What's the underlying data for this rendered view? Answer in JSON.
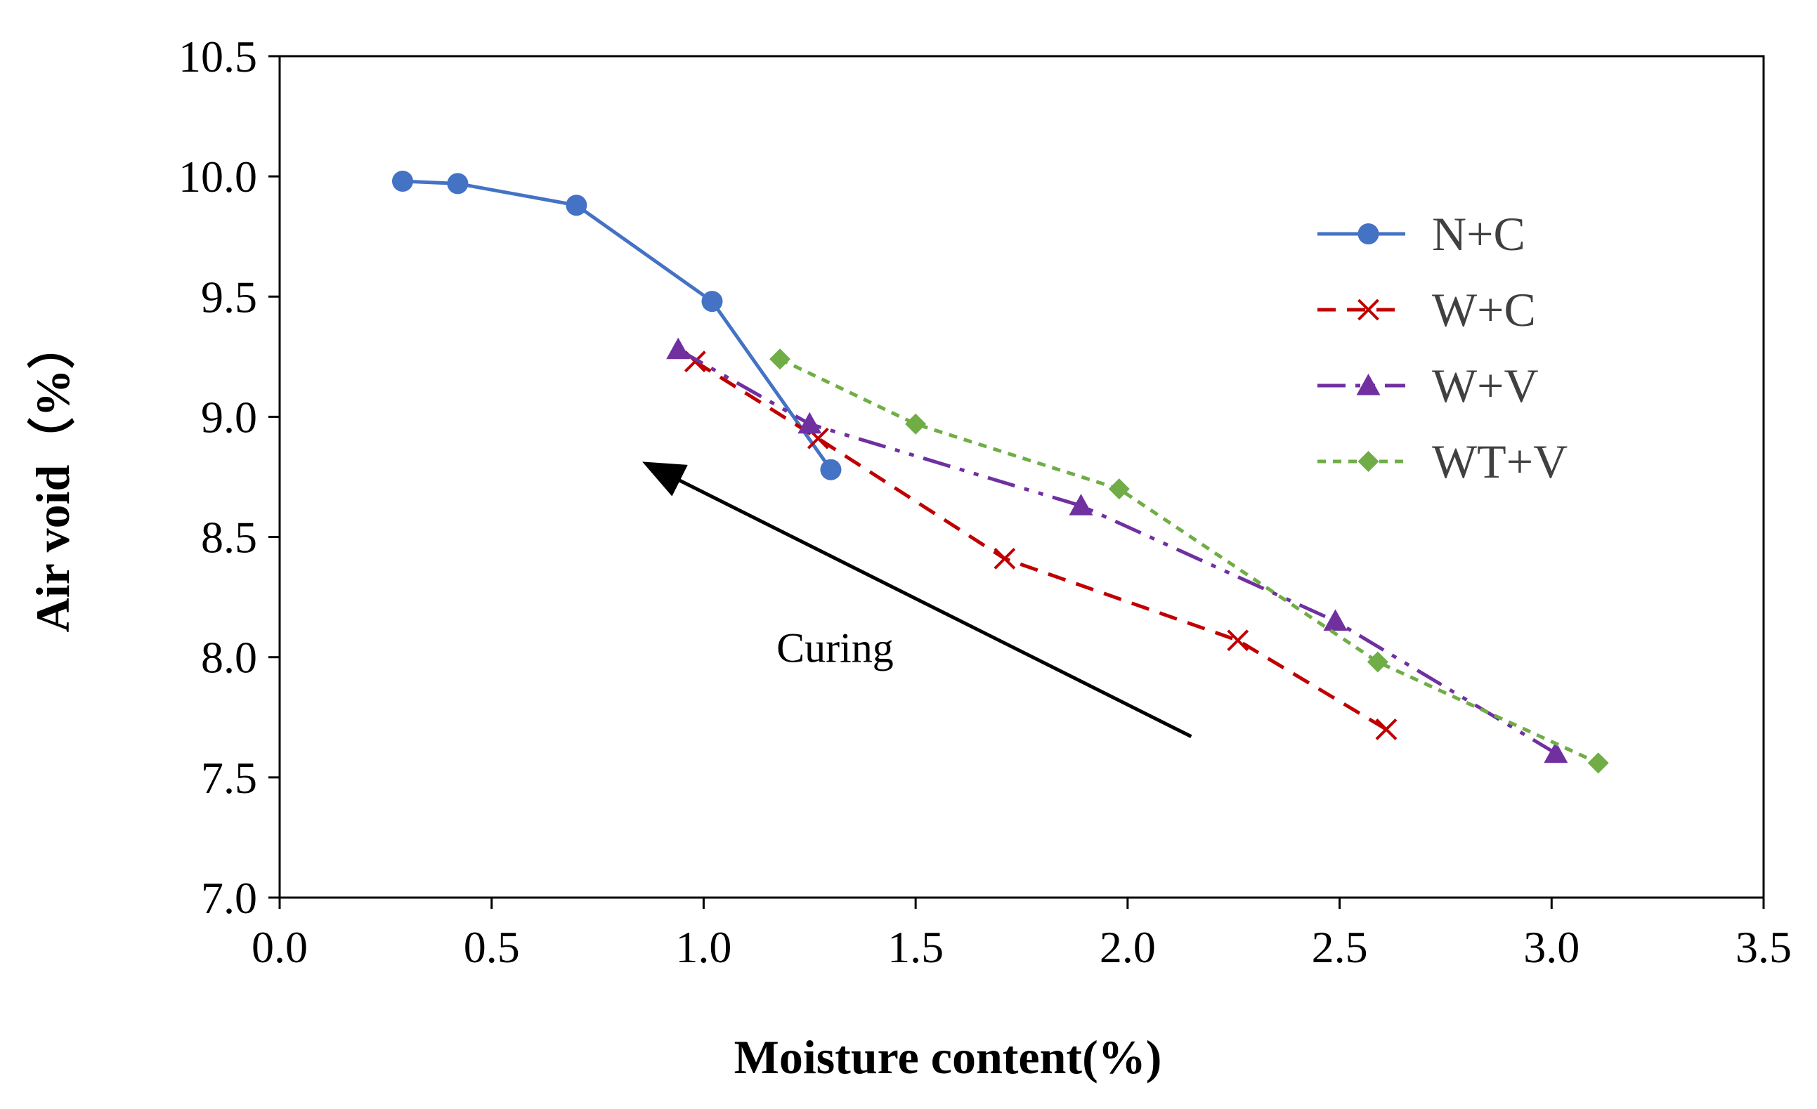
{
  "chart_data": {
    "type": "line",
    "title": "",
    "xlabel": "Moisture content(%)",
    "ylabel": "Air void（%）",
    "xlim": [
      0.0,
      3.5
    ],
    "ylim": [
      7.0,
      10.5
    ],
    "xticks": [
      "0.0",
      "0.5",
      "1.0",
      "1.5",
      "2.0",
      "2.5",
      "3.0",
      "3.5"
    ],
    "yticks": [
      "7.0",
      "7.5",
      "8.0",
      "8.5",
      "9.0",
      "9.5",
      "10.0",
      "10.5"
    ],
    "grid": false,
    "legend_position": "top-right",
    "annotation": {
      "text": "Curing",
      "arrow_from": [
        2.15,
        7.67
      ],
      "arrow_to": [
        0.87,
        8.8
      ]
    },
    "series": [
      {
        "name": "N+C",
        "color": "#4472C4",
        "dash": "solid",
        "marker": "circle",
        "x": [
          0.29,
          0.42,
          0.7,
          1.02,
          1.3
        ],
        "y": [
          9.98,
          9.97,
          9.88,
          9.48,
          8.78
        ]
      },
      {
        "name": "W+C",
        "color": "#C00000",
        "dash": "dash",
        "marker": "x",
        "x": [
          0.98,
          1.27,
          1.71,
          2.26,
          2.61
        ],
        "y": [
          9.23,
          8.91,
          8.41,
          8.07,
          7.7
        ]
      },
      {
        "name": "W+V",
        "color": "#7030A0",
        "dash": "dashdotdot",
        "marker": "triangle",
        "x": [
          0.94,
          1.25,
          1.89,
          2.49,
          3.01
        ],
        "y": [
          9.28,
          8.97,
          8.63,
          8.15,
          7.6
        ]
      },
      {
        "name": "WT+V",
        "color": "#70AD47",
        "dash": "dot",
        "marker": "diamond",
        "x": [
          1.18,
          1.5,
          1.98,
          2.59,
          3.11
        ],
        "y": [
          9.24,
          8.97,
          8.7,
          7.98,
          7.56
        ]
      }
    ]
  }
}
